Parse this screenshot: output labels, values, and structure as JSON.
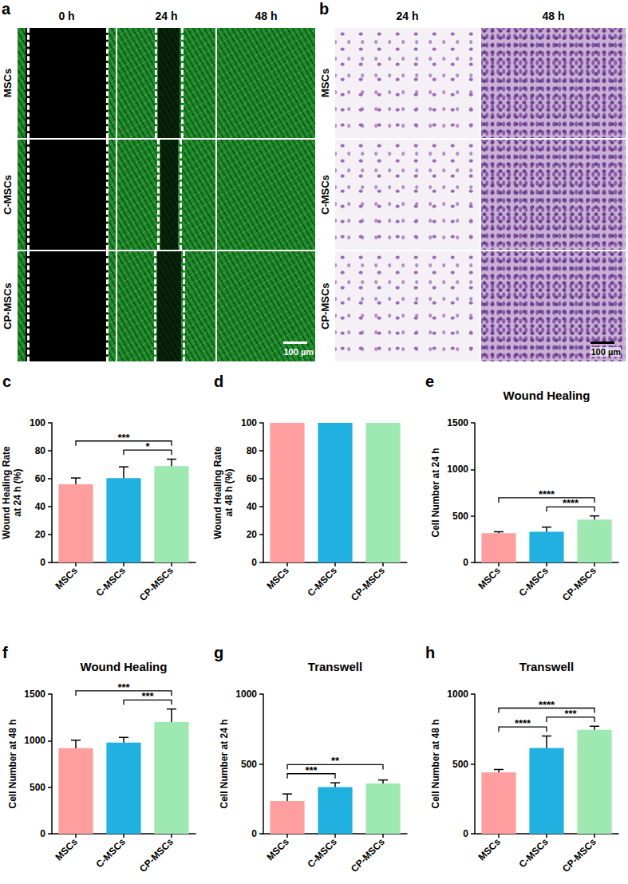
{
  "image_panels": [
    {
      "panel": "a",
      "columns": [
        "0 h",
        "24 h",
        "48 h"
      ],
      "rows": [
        "MSCs",
        "C-MSCs",
        "CP-MSCs"
      ],
      "scale_bar": "100 µm"
    },
    {
      "panel": "b",
      "columns": [
        "24 h",
        "48 h"
      ],
      "rows": [
        "MSCs",
        "C-MSCs",
        "CP-MSCs"
      ],
      "scale_bar": "100 µm"
    }
  ],
  "chart_data": [
    {
      "panel": "c",
      "type": "bar",
      "ylabel": "Wound Healing Rate\nat 24 h (%)",
      "categories": [
        "MSCs",
        "C-MSCs",
        "CP-MSCs"
      ],
      "values": [
        56,
        60.5,
        69
      ],
      "errors": [
        4.5,
        8,
        5
      ],
      "colors": [
        "#FF9E9E",
        "#21B1E0",
        "#9EE8B1"
      ],
      "ylim": [
        0,
        100
      ],
      "yticks": [
        0,
        20,
        40,
        60,
        80,
        100
      ],
      "grid": false,
      "annotations": [
        {
          "from": "MSCs",
          "to": "CP-MSCs",
          "text": "***"
        },
        {
          "from": "C-MSCs",
          "to": "CP-MSCs",
          "text": "*"
        }
      ]
    },
    {
      "panel": "d",
      "type": "bar",
      "ylabel": "Wound Healing Rate\nat 48 h (%)",
      "categories": [
        "MSCs",
        "C-MSCs",
        "CP-MSCs"
      ],
      "values": [
        100,
        100,
        100
      ],
      "colors": [
        "#FF9E9E",
        "#21B1E0",
        "#9EE8B1"
      ],
      "ylim": [
        0,
        100
      ],
      "yticks": [
        0,
        20,
        40,
        60,
        80,
        100
      ],
      "grid": false,
      "annotations": []
    },
    {
      "panel": "e",
      "type": "bar",
      "title": "Wound Healing",
      "ylabel": "Cell Number at 24 h",
      "categories": [
        "MSCs",
        "C-MSCs",
        "CP-MSCs"
      ],
      "values": [
        315,
        330,
        460
      ],
      "errors": [
        15,
        50,
        40
      ],
      "colors": [
        "#FF9E9E",
        "#21B1E0",
        "#9EE8B1"
      ],
      "ylim": [
        0,
        1500
      ],
      "yticks": [
        0,
        500,
        1000,
        1500
      ],
      "grid": false,
      "annotations": [
        {
          "from": "MSCs",
          "to": "CP-MSCs",
          "text": "****"
        },
        {
          "from": "C-MSCs",
          "to": "CP-MSCs",
          "text": "****"
        }
      ]
    },
    {
      "panel": "f",
      "type": "bar",
      "title": "Wound Healing",
      "ylabel": "Cell Number at 48 h",
      "categories": [
        "MSCs",
        "C-MSCs",
        "CP-MSCs"
      ],
      "values": [
        920,
        980,
        1200
      ],
      "errors": [
        85,
        55,
        140
      ],
      "colors": [
        "#FF9E9E",
        "#21B1E0",
        "#9EE8B1"
      ],
      "ylim": [
        0,
        1500
      ],
      "yticks": [
        0,
        500,
        1000,
        1500
      ],
      "grid": false,
      "annotations": [
        {
          "from": "MSCs",
          "to": "CP-MSCs",
          "text": "***"
        },
        {
          "from": "C-MSCs",
          "to": "CP-MSCs",
          "text": "***"
        }
      ]
    },
    {
      "panel": "g",
      "type": "bar",
      "title": "Transwell",
      "ylabel": "Cell Number at 24 h",
      "categories": [
        "MSCs",
        "C-MSCs",
        "CP-MSCs"
      ],
      "values": [
        235,
        335,
        360
      ],
      "errors": [
        50,
        30,
        25
      ],
      "colors": [
        "#FF9E9E",
        "#21B1E0",
        "#9EE8B1"
      ],
      "ylim": [
        0,
        1000
      ],
      "yticks": [
        0,
        500,
        1000
      ],
      "grid": false,
      "annotations": [
        {
          "from": "MSCs",
          "to": "C-MSCs",
          "text": "***"
        },
        {
          "from": "MSCs",
          "to": "CP-MSCs",
          "text": "**"
        }
      ]
    },
    {
      "panel": "h",
      "type": "bar",
      "title": "Transwell",
      "ylabel": "Cell Number at 48 h",
      "categories": [
        "MSCs",
        "C-MSCs",
        "CP-MSCs"
      ],
      "values": [
        440,
        615,
        745
      ],
      "errors": [
        20,
        85,
        25
      ],
      "colors": [
        "#FF9E9E",
        "#21B1E0",
        "#9EE8B1"
      ],
      "ylim": [
        0,
        1000
      ],
      "yticks": [
        0,
        500,
        1000
      ],
      "grid": false,
      "annotations": [
        {
          "from": "MSCs",
          "to": "CP-MSCs",
          "text": "****"
        },
        {
          "from": "MSCs",
          "to": "C-MSCs",
          "text": "****"
        },
        {
          "from": "C-MSCs",
          "to": "CP-MSCs",
          "text": "***"
        }
      ]
    }
  ]
}
